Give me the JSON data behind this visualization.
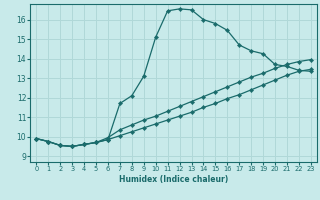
{
  "xlabel": "Humidex (Indice chaleur)",
  "bg_color": "#c8eaea",
  "grid_color": "#b0d8d8",
  "line_color": "#1a6b6b",
  "xlim": [
    -0.5,
    23.5
  ],
  "ylim": [
    8.7,
    16.8
  ],
  "yticks": [
    9,
    10,
    11,
    12,
    13,
    14,
    15,
    16
  ],
  "xticks": [
    0,
    1,
    2,
    3,
    4,
    5,
    6,
    7,
    8,
    9,
    10,
    11,
    12,
    13,
    14,
    15,
    16,
    17,
    18,
    19,
    20,
    21,
    22,
    23
  ],
  "line1_x": [
    0,
    1,
    2,
    3,
    4,
    5,
    6,
    7,
    8,
    9,
    10,
    11,
    12,
    13,
    14,
    15,
    16,
    17,
    18,
    19,
    20,
    21,
    22,
    23
  ],
  "line1_y": [
    9.9,
    9.75,
    9.55,
    9.5,
    9.6,
    9.7,
    9.85,
    11.7,
    12.1,
    13.1,
    15.1,
    16.45,
    16.55,
    16.5,
    16.0,
    15.8,
    15.45,
    14.7,
    14.4,
    14.25,
    13.7,
    13.6,
    13.4,
    13.35
  ],
  "line2_x": [
    0,
    1,
    2,
    3,
    4,
    5,
    6,
    7,
    8,
    9,
    10,
    11,
    12,
    13,
    14,
    15,
    16,
    17,
    18,
    19,
    20,
    21,
    22,
    23
  ],
  "line2_y": [
    9.9,
    9.75,
    9.55,
    9.5,
    9.6,
    9.7,
    9.95,
    10.35,
    10.6,
    10.85,
    11.05,
    11.3,
    11.55,
    11.8,
    12.05,
    12.3,
    12.55,
    12.8,
    13.05,
    13.25,
    13.5,
    13.7,
    13.85,
    13.95
  ],
  "line3_x": [
    0,
    1,
    2,
    3,
    4,
    5,
    6,
    7,
    8,
    9,
    10,
    11,
    12,
    13,
    14,
    15,
    16,
    17,
    18,
    19,
    20,
    21,
    22,
    23
  ],
  "line3_y": [
    9.9,
    9.75,
    9.55,
    9.5,
    9.6,
    9.7,
    9.85,
    10.05,
    10.25,
    10.45,
    10.65,
    10.85,
    11.05,
    11.25,
    11.5,
    11.7,
    11.95,
    12.15,
    12.4,
    12.65,
    12.9,
    13.15,
    13.35,
    13.45
  ]
}
